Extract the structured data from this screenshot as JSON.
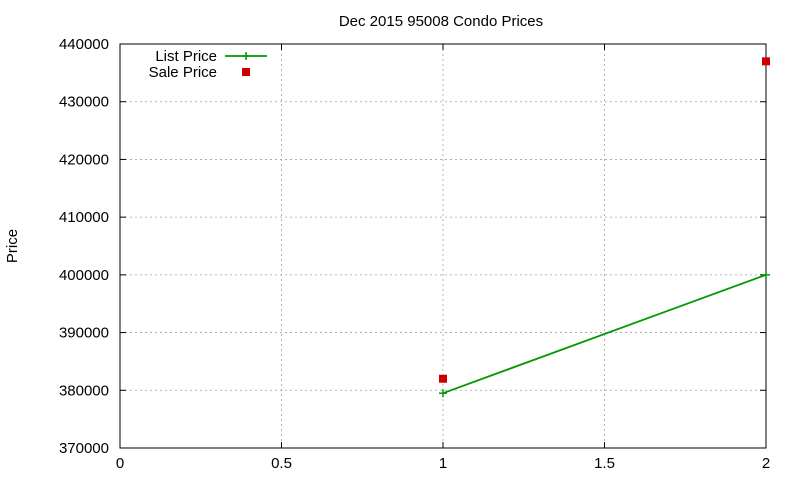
{
  "chart_data": {
    "type": "line",
    "title": "Dec 2015 95008 Condo Prices",
    "xlabel": "",
    "ylabel": "Price",
    "xlim": [
      0,
      2
    ],
    "ylim": [
      370000,
      440000
    ],
    "x_ticks": [
      0,
      0.5,
      1,
      1.5,
      2
    ],
    "x_tick_labels": [
      "0",
      "0.5",
      "1",
      "1.5",
      "2"
    ],
    "y_ticks": [
      370000,
      380000,
      390000,
      400000,
      410000,
      420000,
      430000,
      440000
    ],
    "y_tick_labels": [
      "370000",
      "380000",
      "390000",
      "400000",
      "410000",
      "420000",
      "430000",
      "440000"
    ],
    "grid": true,
    "legend_position": "top-left",
    "series": [
      {
        "name": "List Price",
        "style": "linespoints",
        "marker": "plus",
        "color": "#009900",
        "points": [
          {
            "x": 1,
            "y": 379500
          },
          {
            "x": 2,
            "y": 400000
          }
        ]
      },
      {
        "name": "Sale Price",
        "style": "points",
        "marker": "square",
        "color": "#cc0000",
        "points": [
          {
            "x": 1,
            "y": 382000
          },
          {
            "x": 2,
            "y": 437000
          }
        ]
      }
    ]
  }
}
